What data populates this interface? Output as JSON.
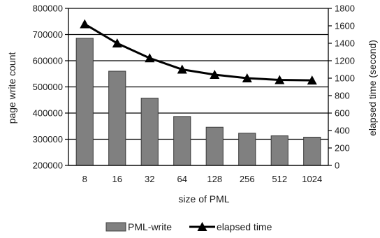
{
  "chart_data": {
    "type": "bar",
    "categories": [
      "8",
      "16",
      "32",
      "64",
      "128",
      "256",
      "512",
      "1024"
    ],
    "xlabel": "size of PML",
    "ylabel_left": "page write  count",
    "ylabel_right": "elapsed time (second)",
    "ylim_left": [
      200000,
      800000
    ],
    "yticks_left": [
      200000,
      300000,
      400000,
      500000,
      600000,
      700000,
      800000
    ],
    "ylim_right": [
      0,
      1800
    ],
    "yticks_right": [
      0,
      200,
      400,
      600,
      800,
      1000,
      1200,
      1400,
      1600,
      1800
    ],
    "grid": true,
    "legend_position": "bottom",
    "series": [
      {
        "name": "PML-write",
        "type": "bar",
        "axis": "left",
        "color": "#808080",
        "values": [
          686000,
          560000,
          457000,
          387000,
          346000,
          323000,
          313000,
          308000
        ]
      },
      {
        "name": "elapsed time",
        "type": "line",
        "axis": "right",
        "color": "#000000",
        "marker": "triangle",
        "values": [
          1620,
          1400,
          1230,
          1100,
          1040,
          1000,
          980,
          975
        ]
      }
    ]
  }
}
